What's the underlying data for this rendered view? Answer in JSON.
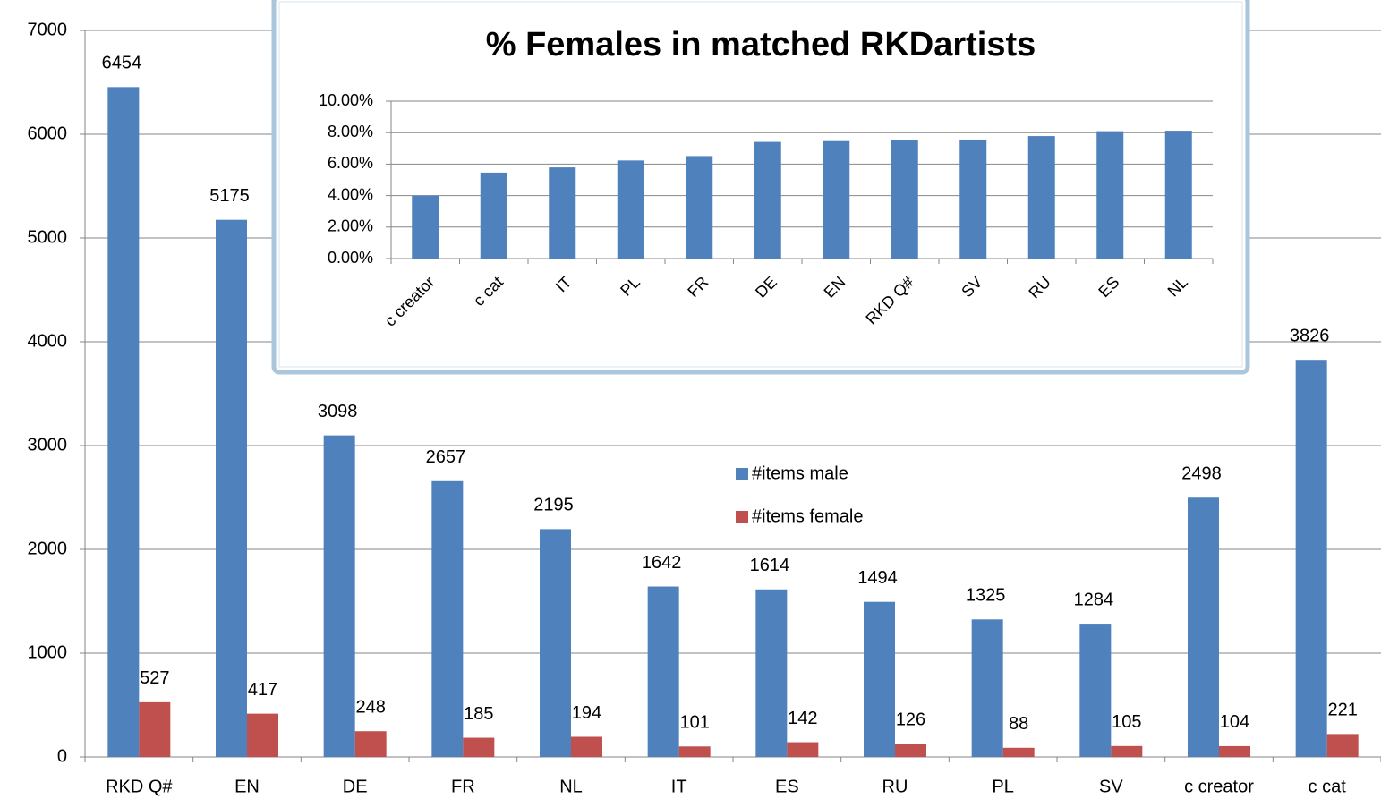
{
  "chart_data": [
    {
      "type": "bar",
      "categories": [
        "RKD Q#",
        "EN",
        "DE",
        "FR",
        "NL",
        "IT",
        "ES",
        "RU",
        "PL",
        "SV",
        "c creator",
        "c cat"
      ],
      "series": [
        {
          "name": "#items male",
          "color": "#4f81bd",
          "values": [
            6454,
            5175,
            3098,
            2657,
            2195,
            1642,
            1614,
            1494,
            1325,
            1284,
            2498,
            3826
          ]
        },
        {
          "name": "#items female",
          "color": "#c0504d",
          "values": [
            527,
            417,
            248,
            185,
            194,
            101,
            142,
            126,
            88,
            105,
            104,
            221
          ]
        }
      ],
      "ylim": [
        0,
        7000
      ],
      "yticks": [
        0,
        1000,
        2000,
        3000,
        4000,
        5000,
        6000,
        7000
      ],
      "grid": true
    },
    {
      "type": "bar",
      "title": "% Females in matched RKDartists",
      "categories": [
        "c creator",
        "c cat",
        "IT",
        "PL",
        "FR",
        "DE",
        "EN",
        "RKD Q#",
        "SV",
        "RU",
        "ES",
        "NL"
      ],
      "values": [
        4.0,
        5.46,
        5.79,
        6.23,
        6.51,
        7.41,
        7.46,
        7.55,
        7.56,
        7.78,
        8.09,
        8.12
      ],
      "color": "#4f81bd",
      "ylim": [
        0,
        10
      ],
      "yticks": [
        {
          "value": 0,
          "label": "0.00%"
        },
        {
          "value": 2,
          "label": "2.00%"
        },
        {
          "value": 4,
          "label": "4.00%"
        },
        {
          "value": 6,
          "label": "6.00%"
        },
        {
          "value": 8,
          "label": "8.00%"
        },
        {
          "value": 10,
          "label": "10.00%"
        }
      ],
      "grid": true
    }
  ]
}
